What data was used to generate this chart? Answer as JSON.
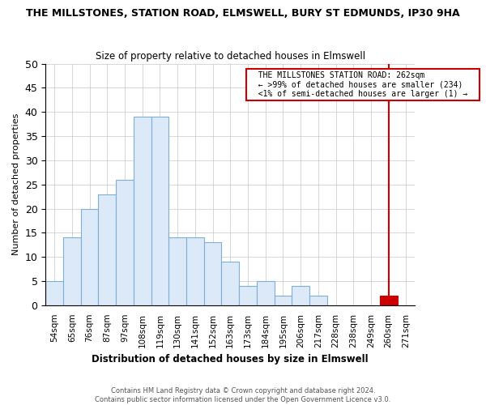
{
  "title": "THE MILLSTONES, STATION ROAD, ELMSWELL, BURY ST EDMUNDS, IP30 9HA",
  "subtitle": "Size of property relative to detached houses in Elmswell",
  "xlabel": "Distribution of detached houses by size in Elmswell",
  "ylabel": "Number of detached properties",
  "footer_line1": "Contains HM Land Registry data © Crown copyright and database right 2024.",
  "footer_line2": "Contains public sector information licensed under the Open Government Licence v3.0.",
  "categories": [
    "54sqm",
    "65sqm",
    "76sqm",
    "87sqm",
    "97sqm",
    "108sqm",
    "119sqm",
    "130sqm",
    "141sqm",
    "152sqm",
    "163sqm",
    "173sqm",
    "184sqm",
    "195sqm",
    "206sqm",
    "217sqm",
    "228sqm",
    "238sqm",
    "249sqm",
    "260sqm",
    "271sqm"
  ],
  "values": [
    5,
    14,
    20,
    23,
    26,
    39,
    39,
    14,
    14,
    13,
    9,
    4,
    5,
    2,
    4,
    2,
    0,
    0,
    0,
    2,
    0
  ],
  "highlight_index": 19,
  "bar_facecolor": "#dce9f8",
  "bar_edgecolor": "#7fafd4",
  "highlight_color": "#cc0000",
  "ylim": [
    0,
    50
  ],
  "yticks": [
    0,
    5,
    10,
    15,
    20,
    25,
    30,
    35,
    40,
    45,
    50
  ],
  "annotation_title": "THE MILLSTONES STATION ROAD: 262sqm",
  "annotation_line1": "← >99% of detached houses are smaller (234)",
  "annotation_line2": "<1% of semi-detached houses are larger (1) →",
  "annotation_box_color": "#cc0000",
  "vline_x_index": 19,
  "grid_color": "#c8c8c8",
  "title_fontsize": 9,
  "subtitle_fontsize": 8.5
}
